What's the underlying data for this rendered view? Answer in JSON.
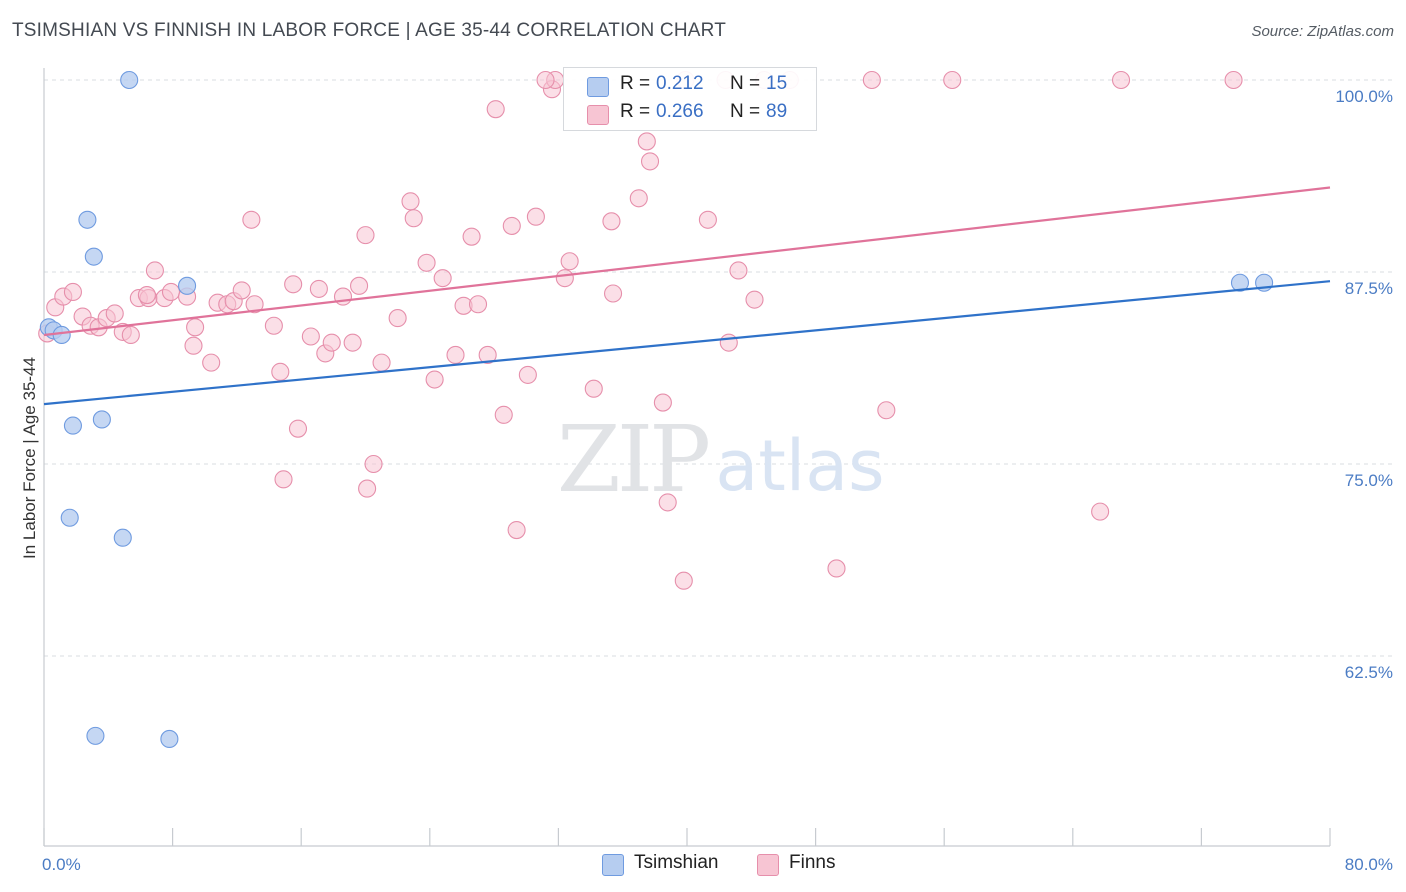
{
  "header": {
    "title": "TSIMSHIAN VS FINNISH IN LABOR FORCE | AGE 35-44 CORRELATION CHART",
    "source": "Source: ZipAtlas.com"
  },
  "watermark": {
    "zip": "ZIP",
    "atlas": "atlas"
  },
  "legend_top": {
    "rows": [
      {
        "r_label": "R =",
        "r_value": "0.212",
        "n_label": "N =",
        "n_value": "15"
      },
      {
        "r_label": "R =",
        "r_value": "0.266",
        "n_label": "N =",
        "n_value": "89"
      }
    ]
  },
  "legend_bottom": {
    "items": [
      "Tsimshian",
      "Finns"
    ]
  },
  "colors": {
    "tsimshian_fill": "#b6cdf0",
    "tsimshian_stroke": "#6f9be0",
    "tsimshian_line": "#2f72c9",
    "finns_fill": "#f7c5d3",
    "finns_stroke": "#e68fab",
    "finns_line": "#e0739a",
    "grid": "#d8dce1",
    "tick_label": "#4b7cc4"
  },
  "chart_data": {
    "type": "scatter",
    "title": "TSIMSHIAN VS FINNISH IN LABOR FORCE | AGE 35-44 CORRELATION CHART",
    "ylabel": "In Labor Force | Age 35-44",
    "xlabel": "",
    "xlim": [
      0,
      80
    ],
    "ylim": [
      50,
      101.5
    ],
    "x_tick_labels": [
      "0.0%",
      "80.0%"
    ],
    "y_ticks": [
      62.5,
      75.0,
      87.5,
      100.0
    ],
    "y_tick_labels": [
      "62.5%",
      "75.0%",
      "87.5%",
      "100.0%"
    ],
    "grid": "horizontal dashed",
    "legend_placement": "bottom",
    "series": [
      {
        "name": "Tsimshian",
        "r": 0.212,
        "n": 15,
        "trend": {
          "x": [
            0,
            80
          ],
          "y": [
            78.9,
            86.9
          ]
        },
        "points": [
          [
            0.3,
            83.9
          ],
          [
            0.6,
            83.7
          ],
          [
            1.1,
            83.4
          ],
          [
            5.3,
            100.0
          ],
          [
            2.7,
            90.9
          ],
          [
            3.1,
            88.5
          ],
          [
            8.9,
            86.6
          ],
          [
            1.8,
            77.5
          ],
          [
            3.6,
            77.9
          ],
          [
            1.6,
            71.5
          ],
          [
            4.9,
            70.2
          ],
          [
            3.2,
            57.3
          ],
          [
            7.8,
            57.1
          ],
          [
            74.4,
            86.8
          ],
          [
            75.9,
            86.8
          ]
        ]
      },
      {
        "name": "Finns",
        "r": 0.266,
        "n": 89,
        "trend": {
          "x": [
            0,
            80
          ],
          "y": [
            83.4,
            93.0
          ]
        },
        "points": [
          [
            0.2,
            83.5
          ],
          [
            0.7,
            85.2
          ],
          [
            1.2,
            85.9
          ],
          [
            1.8,
            86.2
          ],
          [
            2.4,
            84.6
          ],
          [
            2.9,
            84.0
          ],
          [
            3.4,
            83.9
          ],
          [
            3.9,
            84.5
          ],
          [
            4.4,
            84.8
          ],
          [
            4.9,
            83.6
          ],
          [
            5.4,
            83.4
          ],
          [
            5.9,
            85.8
          ],
          [
            6.5,
            85.8
          ],
          [
            6.4,
            86.0
          ],
          [
            6.9,
            87.6
          ],
          [
            7.5,
            85.8
          ],
          [
            7.9,
            86.2
          ],
          [
            8.9,
            85.9
          ],
          [
            9.4,
            83.9
          ],
          [
            9.3,
            82.7
          ],
          [
            10.4,
            81.6
          ],
          [
            10.8,
            85.5
          ],
          [
            11.4,
            85.4
          ],
          [
            11.8,
            85.6
          ],
          [
            12.3,
            86.3
          ],
          [
            13.1,
            85.4
          ],
          [
            14.3,
            84.0
          ],
          [
            14.7,
            81.0
          ],
          [
            14.9,
            74.0
          ],
          [
            15.5,
            86.7
          ],
          [
            15.8,
            77.3
          ],
          [
            16.6,
            83.3
          ],
          [
            17.1,
            86.4
          ],
          [
            17.5,
            82.2
          ],
          [
            17.9,
            82.9
          ],
          [
            18.6,
            85.9
          ],
          [
            19.2,
            82.9
          ],
          [
            19.6,
            86.6
          ],
          [
            20.1,
            73.4
          ],
          [
            20.5,
            75.0
          ],
          [
            21.0,
            81.6
          ],
          [
            22.0,
            84.5
          ],
          [
            22.8,
            92.1
          ],
          [
            23.0,
            91.0
          ],
          [
            23.8,
            88.1
          ],
          [
            24.3,
            80.5
          ],
          [
            24.8,
            87.1
          ],
          [
            25.6,
            82.1
          ],
          [
            26.1,
            85.3
          ],
          [
            26.6,
            89.8
          ],
          [
            27.0,
            85.4
          ],
          [
            27.6,
            82.1
          ],
          [
            28.1,
            98.1
          ],
          [
            28.6,
            78.2
          ],
          [
            29.1,
            90.5
          ],
          [
            29.4,
            70.7
          ],
          [
            30.1,
            80.8
          ],
          [
            30.6,
            91.1
          ],
          [
            31.6,
            99.4
          ],
          [
            31.8,
            100.0
          ],
          [
            32.4,
            87.1
          ],
          [
            32.7,
            88.2
          ],
          [
            34.2,
            79.9
          ],
          [
            35.3,
            90.8
          ],
          [
            35.4,
            86.1
          ],
          [
            37.0,
            92.3
          ],
          [
            37.5,
            96.0
          ],
          [
            37.7,
            94.7
          ],
          [
            38.5,
            79.0
          ],
          [
            38.8,
            72.5
          ],
          [
            39.9,
            100.0
          ],
          [
            39.8,
            67.4
          ],
          [
            41.3,
            90.9
          ],
          [
            42.4,
            100.0
          ],
          [
            42.6,
            82.9
          ],
          [
            43.2,
            87.6
          ],
          [
            44.2,
            85.7
          ],
          [
            44.8,
            100.0
          ],
          [
            46.4,
            100.0
          ],
          [
            49.3,
            68.2
          ],
          [
            51.5,
            100.0
          ],
          [
            52.4,
            78.5
          ],
          [
            56.5,
            100.0
          ],
          [
            65.7,
            71.9
          ],
          [
            67.0,
            100.0
          ],
          [
            74.0,
            100.0
          ],
          [
            12.9,
            90.9
          ],
          [
            20.0,
            89.9
          ],
          [
            31.2,
            100.0
          ]
        ]
      }
    ]
  }
}
